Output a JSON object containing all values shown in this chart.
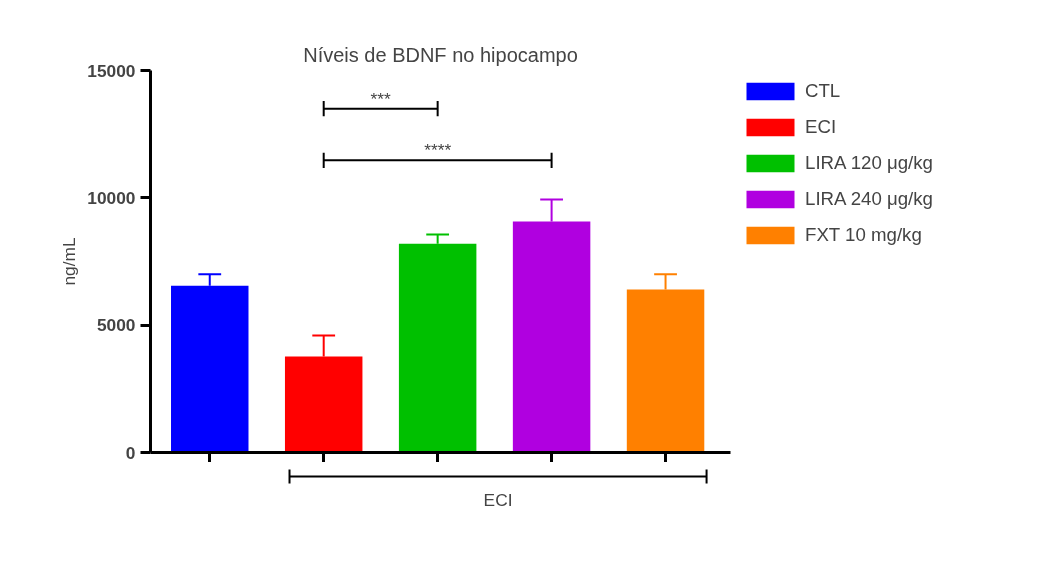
{
  "chart_data": {
    "type": "bar",
    "title": "Níveis de BDNF no hipocampo",
    "ylabel": "ng/mL",
    "xlabel": "ECI",
    "categories": [
      null,
      null,
      null,
      null,
      null
    ],
    "series": [
      {
        "name": "CTL",
        "color": "#0000ff",
        "values": [
          6550,
          null,
          null,
          null,
          null
        ],
        "errors": [
          [
            6550,
            7000
          ],
          null,
          null,
          null,
          null
        ]
      },
      {
        "name": "ECI",
        "color": "#ff0000",
        "values": [
          null,
          3770,
          null,
          null,
          null
        ],
        "errors": [
          null,
          [
            3770,
            4590
          ],
          null,
          null,
          null
        ]
      },
      {
        "name": "LIRA 120 μg/kg",
        "color": "#00c000",
        "values": [
          null,
          null,
          8200,
          null,
          null
        ],
        "errors": [
          null,
          null,
          [
            8200,
            8560
          ],
          null,
          null
        ]
      },
      {
        "name": "LIRA 240 μg/kg",
        "color": "#b000e0",
        "values": [
          null,
          null,
          null,
          9070,
          null
        ],
        "errors": [
          null,
          null,
          null,
          [
            9070,
            9930
          ],
          null
        ]
      },
      {
        "name": "FXT 10 mg/kg",
        "color": "#ff8000",
        "values": [
          null,
          null,
          null,
          null,
          6400
        ],
        "errors": [
          null,
          null,
          null,
          null,
          [
            6400,
            7000
          ]
        ]
      }
    ],
    "annotations": [
      "***",
      "****"
    ],
    "ylim": [
      0,
      15000
    ],
    "yticks": [
      0,
      5000,
      10000,
      15000
    ],
    "grid": false,
    "legend": "right",
    "tick_labels": "y"
  }
}
